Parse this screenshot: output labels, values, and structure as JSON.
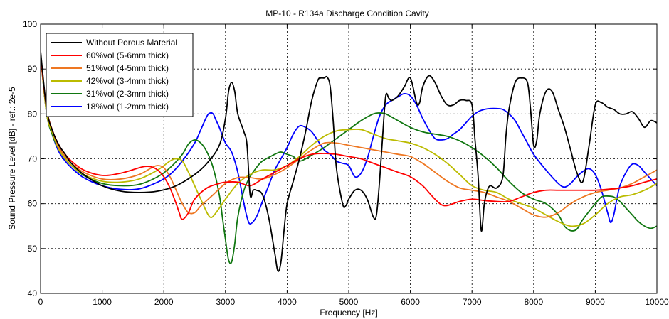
{
  "chart_data": {
    "type": "line",
    "title": "MP-10 - R134a Discharge Condition Cavity",
    "xlabel": "Frequency [Hz]",
    "ylabel": "Sound Pressure Level [dB] - ref.: 2e-5",
    "xlim": [
      0,
      10000
    ],
    "ylim": [
      40,
      100
    ],
    "xticks": [
      0,
      1000,
      2000,
      3000,
      4000,
      5000,
      6000,
      7000,
      8000,
      9000,
      10000
    ],
    "yticks": [
      40,
      50,
      60,
      70,
      80,
      90,
      100
    ],
    "grid": true,
    "legend_position": "top-left",
    "series": [
      {
        "name": "Without Porous Material",
        "color": "#000000",
        "x": [
          0,
          100,
          200,
          300,
          400,
          500,
          700,
          1000,
          1300,
          1600,
          1900,
          2200,
          2500,
          2700,
          2900,
          3000,
          3050,
          3100,
          3150,
          3200,
          3300,
          3350,
          3400,
          3450,
          3500,
          3600,
          3700,
          3800,
          3850,
          3900,
          3950,
          4000,
          4100,
          4200,
          4300,
          4400,
          4500,
          4550,
          4600,
          4650,
          4700,
          4750,
          4800,
          4900,
          4950,
          5000,
          5100,
          5200,
          5300,
          5400,
          5450,
          5500,
          5550,
          5600,
          5650,
          5700,
          5800,
          5900,
          6000,
          6100,
          6150,
          6200,
          6300,
          6400,
          6500,
          6600,
          6700,
          6800,
          6900,
          7000,
          7050,
          7100,
          7150,
          7200,
          7250,
          7300,
          7400,
          7500,
          7550,
          7600,
          7700,
          7800,
          7900,
          7950,
          8000,
          8050,
          8100,
          8200,
          8300,
          8400,
          8500,
          8600,
          8700,
          8800,
          8900,
          9000,
          9100,
          9200,
          9300,
          9400,
          9500,
          9600,
          9700,
          9800,
          9900,
          10000
        ],
        "y": [
          94,
          81,
          76,
          73,
          71,
          69,
          66.5,
          64,
          62.8,
          62.5,
          62.8,
          64,
          66.5,
          69,
          73,
          79,
          85,
          87,
          85,
          80,
          76,
          73,
          62,
          63,
          63,
          62,
          57,
          49,
          45,
          47,
          54,
          60,
          65,
          70,
          76,
          83,
          87.5,
          88,
          88,
          88.2,
          86,
          78,
          68,
          60,
          59.5,
          61,
          63,
          63,
          61,
          57,
          57.5,
          65,
          75,
          84,
          83.5,
          83,
          84,
          86,
          88,
          82.5,
          82.5,
          86,
          88.5,
          87,
          84,
          82,
          82,
          83,
          83,
          82,
          74,
          66,
          54,
          60,
          63,
          64,
          63.5,
          66,
          75,
          81,
          87,
          88,
          87,
          81,
          73,
          74,
          80,
          85,
          85,
          81,
          77,
          72,
          67,
          65,
          73,
          82,
          82.5,
          81.5,
          81,
          80,
          80,
          80.5,
          79,
          77,
          78.5,
          78
        ]
      },
      {
        "name": "60%vol (5-6mm thick)",
        "color": "#ff0000",
        "x": [
          0,
          100,
          200,
          300,
          400,
          500,
          700,
          1000,
          1300,
          1600,
          1700,
          1800,
          1900,
          2000,
          2100,
          2200,
          2250,
          2300,
          2400,
          2500,
          2700,
          2900,
          3000,
          3200,
          3400,
          3600,
          3800,
          4000,
          4200,
          4400,
          4600,
          4800,
          5000,
          5200,
          5400,
          5600,
          5800,
          6000,
          6200,
          6300,
          6400,
          6500,
          6600,
          6800,
          7000,
          7200,
          7400,
          7600,
          7800,
          8000,
          8200,
          8400,
          8600,
          8800,
          9000,
          9200,
          9400,
          9600,
          9800,
          10000
        ],
        "y": [
          93,
          81,
          76,
          73,
          71,
          69.5,
          67.5,
          66.3,
          66.8,
          68,
          68.3,
          68.2,
          67.5,
          66,
          63.5,
          60,
          58,
          56.5,
          58,
          61,
          63.5,
          64.5,
          64.8,
          64.8,
          64,
          65.5,
          67,
          68.5,
          70,
          71,
          71.2,
          71,
          70.5,
          70,
          69,
          68,
          67,
          66,
          64,
          62.5,
          61,
          59.8,
          59.6,
          60.5,
          61,
          60.7,
          60.5,
          60.5,
          61.5,
          62.5,
          63,
          63,
          63,
          63,
          63,
          63.2,
          63.5,
          64,
          64.8,
          65.5
        ]
      },
      {
        "name": "51%vol (4-5mm thick)",
        "color": "#ee7722",
        "x": [
          0,
          100,
          200,
          300,
          400,
          500,
          700,
          1000,
          1300,
          1600,
          1800,
          1900,
          2000,
          2100,
          2200,
          2300,
          2400,
          2500,
          2600,
          2800,
          3000,
          3200,
          3400,
          3600,
          3800,
          4000,
          4200,
          4400,
          4600,
          4800,
          5000,
          5200,
          5400,
          5600,
          5800,
          6000,
          6200,
          6400,
          6600,
          6800,
          7000,
          7200,
          7400,
          7600,
          7800,
          8000,
          8200,
          8400,
          8600,
          8800,
          9000,
          9200,
          9400,
          9600,
          9800,
          10000
        ],
        "y": [
          93,
          81,
          76,
          72.5,
          70.5,
          69,
          67,
          65.5,
          65.5,
          66.5,
          68,
          68.5,
          68,
          66,
          63,
          60,
          58,
          58,
          59.5,
          62,
          64.5,
          65.8,
          65.8,
          65.5,
          66.5,
          68,
          70,
          72,
          73.5,
          73.5,
          73,
          72.5,
          72,
          71.5,
          71,
          70.5,
          69,
          67,
          65,
          63.5,
          63,
          62.5,
          61.5,
          60.5,
          59,
          57.5,
          57,
          58,
          60,
          61.5,
          62.5,
          63,
          63.5,
          64.5,
          66,
          67.5
        ]
      },
      {
        "name": "42%vol (3-4mm thick)",
        "color": "#bbbb00",
        "x": [
          0,
          100,
          200,
          300,
          400,
          500,
          700,
          1000,
          1300,
          1600,
          1900,
          2100,
          2200,
          2300,
          2400,
          2500,
          2600,
          2700,
          2750,
          2800,
          2900,
          3000,
          3200,
          3400,
          3600,
          3800,
          4000,
          4200,
          4400,
          4600,
          4800,
          5000,
          5200,
          5400,
          5600,
          5800,
          6000,
          6200,
          6400,
          6600,
          6800,
          7000,
          7200,
          7400,
          7600,
          7800,
          8000,
          8200,
          8400,
          8600,
          8800,
          9000,
          9200,
          9400,
          9600,
          9800,
          10000
        ],
        "y": [
          93,
          80,
          75.5,
          72,
          70,
          68.5,
          66.5,
          65,
          64.8,
          65.5,
          67.5,
          69.5,
          70,
          69.5,
          67,
          64,
          61,
          58,
          57,
          57.2,
          59,
          61,
          64.5,
          66.5,
          67.5,
          67.5,
          68.5,
          70.5,
          73,
          75,
          76.2,
          76.5,
          76.5,
          75.5,
          74.5,
          74,
          73.5,
          72.5,
          71,
          69,
          66.5,
          64,
          63,
          62.5,
          61,
          60,
          59,
          57.5,
          56,
          55,
          55.5,
          57.5,
          60,
          61.5,
          62,
          63,
          64.5
        ]
      },
      {
        "name": "31%vol (2-3mm thick)",
        "color": "#117711",
        "x": [
          0,
          100,
          200,
          300,
          400,
          500,
          700,
          1000,
          1300,
          1600,
          1900,
          2100,
          2300,
          2400,
          2500,
          2600,
          2700,
          2800,
          2900,
          2950,
          3000,
          3050,
          3100,
          3150,
          3200,
          3300,
          3400,
          3500,
          3600,
          3800,
          3900,
          4000,
          4100,
          4200,
          4300,
          4400,
          4600,
          4800,
          5000,
          5200,
          5400,
          5500,
          5600,
          5800,
          6000,
          6200,
          6400,
          6600,
          6800,
          7000,
          7200,
          7400,
          7600,
          7800,
          8000,
          8200,
          8400,
          8500,
          8600,
          8700,
          8800,
          9000,
          9100,
          9200,
          9300,
          9400,
          9500,
          9600,
          9700,
          9800,
          9900,
          10000
        ],
        "y": [
          93,
          80,
          75,
          72,
          70,
          68.5,
          66.3,
          64.5,
          64,
          64.3,
          66,
          68,
          71,
          73.3,
          74.2,
          73.5,
          71.5,
          68,
          62,
          57,
          52,
          47.5,
          47,
          51,
          57,
          63,
          66,
          68,
          69.5,
          71,
          71.5,
          71,
          70.5,
          69.5,
          70,
          70.8,
          72.5,
          74.5,
          76.5,
          78.5,
          80,
          80.2,
          80,
          78.5,
          77,
          76,
          75.5,
          75,
          74,
          72.5,
          70.5,
          68,
          65,
          62.5,
          61,
          60,
          57.5,
          55,
          54,
          54.3,
          56.5,
          60,
          61.5,
          61.7,
          61.5,
          60.5,
          59,
          57.5,
          56,
          55,
          54.5,
          55
        ]
      },
      {
        "name": "18%vol (1-2mm thick)",
        "color": "#0000ff",
        "x": [
          0,
          100,
          200,
          300,
          400,
          500,
          700,
          1000,
          1300,
          1600,
          1900,
          2100,
          2300,
          2500,
          2600,
          2700,
          2750,
          2800,
          2850,
          2900,
          3000,
          3100,
          3200,
          3300,
          3350,
          3400,
          3500,
          3600,
          3700,
          3800,
          3900,
          4000,
          4100,
          4200,
          4300,
          4400,
          4500,
          4600,
          4700,
          4800,
          4900,
          5000,
          5100,
          5200,
          5300,
          5400,
          5500,
          5600,
          5700,
          5800,
          5900,
          6000,
          6100,
          6200,
          6300,
          6400,
          6500,
          6600,
          6700,
          6800,
          6900,
          7000,
          7100,
          7200,
          7300,
          7400,
          7500,
          7600,
          7700,
          7800,
          7900,
          8000,
          8200,
          8400,
          8500,
          8600,
          8700,
          8800,
          8900,
          9000,
          9100,
          9200,
          9250,
          9300,
          9350,
          9400,
          9500,
          9600,
          9700,
          9800,
          9900,
          10000
        ],
        "y": [
          93,
          80,
          75,
          71.5,
          69.5,
          68,
          65.8,
          64,
          63.2,
          63.3,
          64.8,
          66.5,
          69.5,
          73.5,
          76.5,
          79.5,
          80.2,
          80,
          78.5,
          77,
          73.5,
          71.5,
          67,
          60,
          57,
          55.5,
          57,
          60.5,
          64,
          67.5,
          70,
          72.5,
          75.5,
          77.3,
          77,
          76,
          74,
          72,
          71,
          69.5,
          69,
          68.5,
          66,
          66.8,
          70,
          75,
          79.5,
          82,
          83,
          83.8,
          84.5,
          84,
          82,
          79,
          76.5,
          74.5,
          74.2,
          74.5,
          75.5,
          76.5,
          78,
          79.5,
          80.5,
          81,
          81.2,
          81.2,
          81,
          80,
          78.5,
          76,
          73.5,
          71,
          67.5,
          64.5,
          63.7,
          64.5,
          66,
          67.2,
          67.8,
          66.5,
          63,
          58,
          55.8,
          57.5,
          61,
          64,
          67,
          68.8,
          68.5,
          67,
          65.5,
          64
        ]
      }
    ]
  }
}
